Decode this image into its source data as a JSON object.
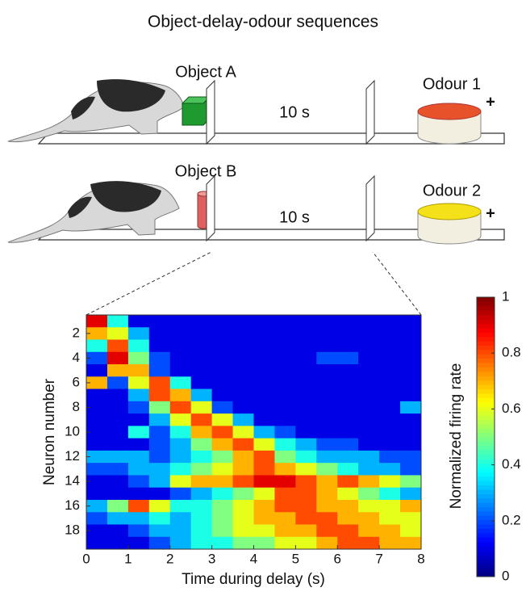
{
  "header": {
    "title": "Object-delay-odour sequences"
  },
  "diagram": {
    "rows": [
      {
        "object": "Object A",
        "delay": "10 s",
        "odour": "Odour 1",
        "reward": "+"
      },
      {
        "object": "Object B",
        "delay": "10 s",
        "odour": "Odour 2",
        "reward": "+"
      }
    ]
  },
  "chart_data": {
    "type": "heatmap",
    "xlabel": "Time during delay (s)",
    "ylabel": "Neuron number",
    "colorbar_label": "Normalized firing rate",
    "colormap": "jet",
    "xlim": [
      0,
      8
    ],
    "xticks": [
      0,
      1,
      2,
      3,
      4,
      5,
      6,
      7,
      8
    ],
    "ylim": [
      0.5,
      19.5
    ],
    "yticks": [
      2,
      4,
      6,
      8,
      10,
      12,
      14,
      16,
      18
    ],
    "clim": [
      0,
      1
    ],
    "cticks": [
      0,
      0.2,
      0.4,
      0.6,
      0.8,
      1
    ],
    "values": [
      [
        0.9,
        0.4,
        0.1,
        0.1,
        0.1,
        0.1,
        0.1,
        0.1,
        0.1,
        0.1,
        0.1,
        0.1,
        0.1,
        0.1,
        0.1,
        0.1
      ],
      [
        0.7,
        0.6,
        0.3,
        0.1,
        0.1,
        0.1,
        0.1,
        0.1,
        0.1,
        0.1,
        0.1,
        0.1,
        0.1,
        0.1,
        0.1,
        0.1
      ],
      [
        0.4,
        0.8,
        0.4,
        0.1,
        0.1,
        0.1,
        0.1,
        0.1,
        0.1,
        0.1,
        0.1,
        0.1,
        0.1,
        0.1,
        0.1,
        0.1
      ],
      [
        0.2,
        0.9,
        0.5,
        0.2,
        0.1,
        0.1,
        0.1,
        0.1,
        0.1,
        0.1,
        0.1,
        0.2,
        0.2,
        0.1,
        0.1,
        0.1
      ],
      [
        0.1,
        0.7,
        0.7,
        0.2,
        0.1,
        0.1,
        0.1,
        0.1,
        0.1,
        0.1,
        0.1,
        0.1,
        0.1,
        0.1,
        0.1,
        0.1
      ],
      [
        0.7,
        0.2,
        0.6,
        0.8,
        0.4,
        0.1,
        0.1,
        0.1,
        0.1,
        0.1,
        0.1,
        0.1,
        0.1,
        0.1,
        0.1,
        0.1
      ],
      [
        0.1,
        0.1,
        0.3,
        0.8,
        0.7,
        0.3,
        0.1,
        0.1,
        0.1,
        0.1,
        0.1,
        0.1,
        0.1,
        0.1,
        0.1,
        0.1
      ],
      [
        0.1,
        0.1,
        0.2,
        0.5,
        0.8,
        0.6,
        0.2,
        0.1,
        0.1,
        0.1,
        0.1,
        0.1,
        0.1,
        0.1,
        0.1,
        0.3
      ],
      [
        0.1,
        0.1,
        0.1,
        0.3,
        0.6,
        0.8,
        0.6,
        0.3,
        0.1,
        0.1,
        0.1,
        0.1,
        0.1,
        0.1,
        0.1,
        0.1
      ],
      [
        0.1,
        0.1,
        0.4,
        0.2,
        0.4,
        0.7,
        0.8,
        0.6,
        0.3,
        0.2,
        0.1,
        0.1,
        0.1,
        0.1,
        0.1,
        0.1
      ],
      [
        0.1,
        0.1,
        0.1,
        0.2,
        0.3,
        0.5,
        0.7,
        0.8,
        0.6,
        0.4,
        0.3,
        0.2,
        0.2,
        0.1,
        0.1,
        0.1
      ],
      [
        0.3,
        0.3,
        0.3,
        0.2,
        0.3,
        0.4,
        0.5,
        0.7,
        0.8,
        0.5,
        0.4,
        0.3,
        0.3,
        0.3,
        0.2,
        0.2
      ],
      [
        0.2,
        0.2,
        0.3,
        0.3,
        0.4,
        0.5,
        0.6,
        0.7,
        0.8,
        0.7,
        0.6,
        0.5,
        0.4,
        0.3,
        0.3,
        0.2
      ],
      [
        0.1,
        0.1,
        0.2,
        0.3,
        0.6,
        0.7,
        0.7,
        0.8,
        0.9,
        0.9,
        0.8,
        0.7,
        0.8,
        0.7,
        0.6,
        0.5
      ],
      [
        0.1,
        0.1,
        0.1,
        0.1,
        0.2,
        0.3,
        0.4,
        0.5,
        0.6,
        0.8,
        0.8,
        0.7,
        0.6,
        0.5,
        0.4,
        0.3
      ],
      [
        0.3,
        0.5,
        0.8,
        0.6,
        0.4,
        0.4,
        0.5,
        0.6,
        0.7,
        0.8,
        0.8,
        0.7,
        0.7,
        0.6,
        0.6,
        0.7
      ],
      [
        0.2,
        0.3,
        0.3,
        0.4,
        0.3,
        0.4,
        0.5,
        0.6,
        0.7,
        0.7,
        0.8,
        0.8,
        0.7,
        0.7,
        0.6,
        0.6
      ],
      [
        0.1,
        0.1,
        0.2,
        0.3,
        0.3,
        0.4,
        0.5,
        0.6,
        0.6,
        0.7,
        0.7,
        0.8,
        0.8,
        0.7,
        0.7,
        0.6
      ],
      [
        0.1,
        0.1,
        0.1,
        0.2,
        0.3,
        0.4,
        0.4,
        0.5,
        0.5,
        0.6,
        0.6,
        0.7,
        0.8,
        0.8,
        0.7,
        0.7
      ]
    ]
  }
}
